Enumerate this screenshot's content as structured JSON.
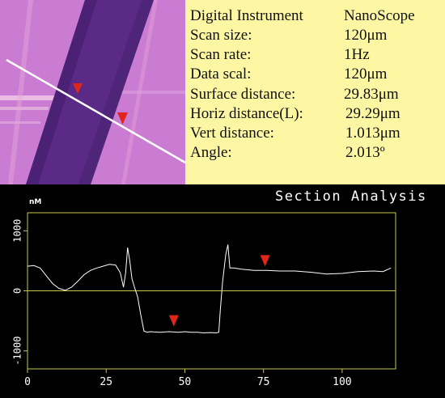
{
  "info": {
    "header_label": "Digital Instrument",
    "header_value": "NanoScope",
    "rows": [
      {
        "label": "Scan size:",
        "value": "120μm"
      },
      {
        "label": "Scan rate:",
        "value": "1Hz"
      },
      {
        "label": "Data scal:",
        "value": "120μm"
      },
      {
        "label": "Surface distance:",
        "value": "29.83μm"
      },
      {
        "label": "Horiz distance(L):",
        "value": "29.29μm"
      },
      {
        "label": "Vert distance:",
        "value": "1.013μm"
      },
      {
        "label": "Angle:",
        "value": "2.013º"
      }
    ]
  },
  "section": {
    "title": "Section Analysis",
    "unit_label": "nM"
  },
  "colors": {
    "info_background": "#fdf7a3",
    "plot_frame": "#c8c84a",
    "marker": "#e0261c",
    "trace": "#ffffff",
    "afm_light": "#cc7ed4",
    "afm_dark": "#5a2a86"
  },
  "chart_data": {
    "type": "line",
    "xlim": [
      0,
      117
    ],
    "ylim": [
      -1300,
      1300
    ],
    "x_ticks": [
      0,
      25,
      50,
      75,
      100
    ],
    "y_ticks": [
      1000,
      0,
      -1000
    ],
    "x_tick_labels": [
      "0",
      "25",
      "50",
      "75",
      "100"
    ],
    "y_tick_labels": [
      "1000",
      "0",
      "-1000"
    ],
    "series": [
      {
        "x": [
          0,
          2,
          4,
          6,
          8,
          10,
          12,
          14,
          16,
          18,
          20,
          22,
          24,
          26,
          28,
          29.5,
          30.5,
          31.2,
          31.8,
          32.5,
          33.2,
          34,
          35,
          36,
          37,
          38,
          39,
          40,
          42,
          45,
          48,
          50,
          52,
          54,
          56,
          58,
          60,
          60.8,
          61.3,
          62,
          63,
          63.7,
          64.3,
          65.5,
          68,
          72,
          76,
          80,
          85,
          90,
          95,
          100,
          105,
          110,
          113,
          115.5
        ],
        "y": [
          410,
          420,
          380,
          250,
          120,
          40,
          10,
          60,
          160,
          270,
          340,
          380,
          410,
          440,
          430,
          300,
          60,
          300,
          720,
          500,
          200,
          60,
          -100,
          -400,
          -670,
          -690,
          -680,
          -685,
          -690,
          -680,
          -690,
          -680,
          -690,
          -690,
          -700,
          -695,
          -700,
          -690,
          -300,
          150,
          600,
          770,
          380,
          380,
          360,
          340,
          340,
          330,
          330,
          310,
          280,
          290,
          320,
          330,
          320,
          380
        ]
      }
    ],
    "markers": [
      {
        "x": 46.5,
        "y": -500
      },
      {
        "x": 75.5,
        "y": 500
      }
    ]
  }
}
